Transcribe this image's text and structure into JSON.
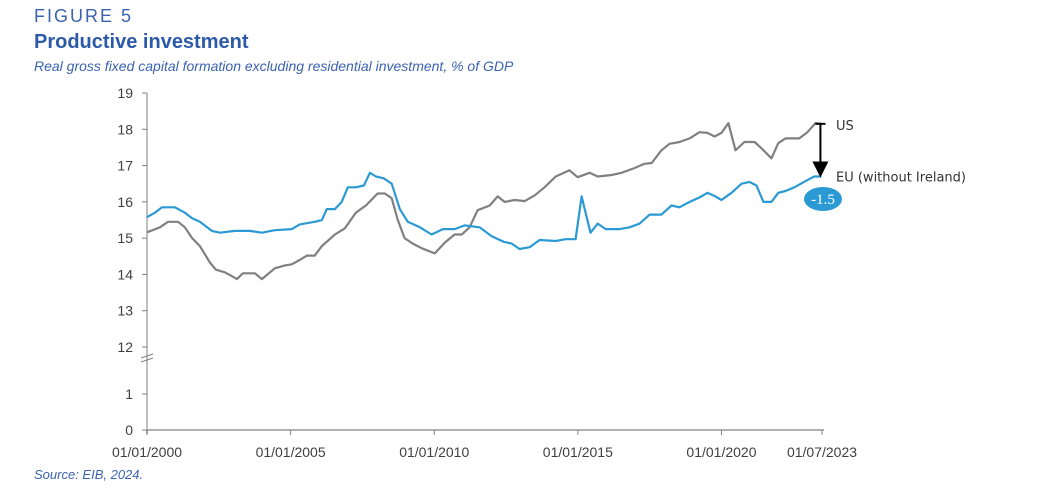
{
  "header": {
    "figure_label": "FIGURE 5",
    "title": "Productive investment",
    "subtitle": "Real gross fixed capital formation excluding residential investment, % of GDP"
  },
  "source": "Source: EIB, 2024.",
  "colors": {
    "eu": "#2b9ad4",
    "us": "#808080",
    "title": "#2d5aa8",
    "badge": "#2b9ad4"
  },
  "chart_data": {
    "type": "line",
    "title": "Productive investment",
    "xlabel": "",
    "ylabel": "% of GDP",
    "y_axis_break": [
      1,
      12
    ],
    "ylim_upper": [
      12,
      19
    ],
    "ylim_lower": [
      0,
      1
    ],
    "y_ticks": [
      0,
      1,
      12,
      13,
      14,
      15,
      16,
      17,
      18,
      19
    ],
    "xlim": [
      2000,
      2023.5
    ],
    "x_ticks": [
      {
        "value": 2000,
        "label": "01/01/2000"
      },
      {
        "value": 2005,
        "label": "01/01/2005"
      },
      {
        "value": 2010,
        "label": "01/01/2010"
      },
      {
        "value": 2015,
        "label": "01/01/2015"
      },
      {
        "value": 2020,
        "label": "01/01/2020"
      },
      {
        "value": 2023.5,
        "label": "01/07/2023"
      }
    ],
    "grid": false,
    "series": [
      {
        "name": "US",
        "color_key": "us",
        "x": [
          2000,
          2000.45,
          2000.73,
          2001.08,
          2001.32,
          2001.57,
          2001.84,
          2002.19,
          2002.4,
          2002.71,
          2002.96,
          2003.13,
          2003.34,
          2003.76,
          2004,
          2004.45,
          2004.8,
          2005.04,
          2005.32,
          2005.57,
          2005.84,
          2006.09,
          2006.54,
          2006.89,
          2007.27,
          2007.62,
          2008.03,
          2008.28,
          2008.52,
          2008.73,
          2008.97,
          2009.25,
          2009.57,
          2010.02,
          2010.37,
          2010.71,
          2010.96,
          2011.23,
          2011.51,
          2011.93,
          2012.21,
          2012.45,
          2012.8,
          2013.15,
          2013.5,
          2013.84,
          2014.23,
          2014.71,
          2014.99,
          2015.41,
          2015.69,
          2016.17,
          2016.52,
          2016.97,
          2017.32,
          2017.57,
          2017.91,
          2018.19,
          2018.54,
          2018.89,
          2019.23,
          2019.51,
          2019.76,
          2020,
          2020.24,
          2020.49,
          2020.8,
          2021.15,
          2021.39,
          2021.74,
          2021.98,
          2022.23,
          2022.71,
          2022.99,
          2023.27,
          2023.48
        ],
        "y": [
          15.16,
          15.3,
          15.45,
          15.45,
          15.3,
          15.0,
          14.78,
          14.33,
          14.13,
          14.06,
          13.95,
          13.87,
          14.03,
          14.03,
          13.87,
          14.17,
          14.25,
          14.28,
          14.4,
          14.52,
          14.52,
          14.78,
          15.1,
          15.27,
          15.7,
          15.9,
          16.23,
          16.23,
          16.1,
          15.5,
          15.0,
          14.85,
          14.72,
          14.58,
          14.88,
          15.1,
          15.1,
          15.3,
          15.77,
          15.9,
          16.15,
          16.0,
          16.05,
          16.02,
          16.18,
          16.4,
          16.7,
          16.87,
          16.68,
          16.8,
          16.7,
          16.74,
          16.8,
          16.93,
          17.05,
          17.07,
          17.42,
          17.6,
          17.65,
          17.75,
          17.92,
          17.9,
          17.8,
          17.9,
          18.17,
          17.42,
          17.65,
          17.65,
          17.48,
          17.2,
          17.62,
          17.75,
          17.75,
          17.92,
          18.17,
          18.15
        ]
      },
      {
        "name": "EU (without Ireland)",
        "color_key": "eu",
        "x": [
          2000,
          2000.28,
          2000.52,
          2000.97,
          2001.32,
          2001.57,
          2001.84,
          2002.26,
          2002.54,
          2003.06,
          2003.58,
          2004,
          2004.45,
          2005.04,
          2005.32,
          2005.84,
          2006.09,
          2006.26,
          2006.54,
          2006.78,
          2006.99,
          2007.27,
          2007.55,
          2007.76,
          2007.97,
          2008.24,
          2008.52,
          2008.8,
          2009.08,
          2009.5,
          2009.91,
          2010.3,
          2010.71,
          2011.06,
          2011.58,
          2012,
          2012.42,
          2012.7,
          2012.97,
          2013.32,
          2013.67,
          2014.23,
          2014.57,
          2014.92,
          2015.13,
          2015.44,
          2015.69,
          2015.97,
          2016.45,
          2016.8,
          2017.15,
          2017.5,
          2017.91,
          2018.26,
          2018.54,
          2018.89,
          2019.23,
          2019.51,
          2019.79,
          2020,
          2020.35,
          2020.7,
          2020.97,
          2021.22,
          2021.46,
          2021.74,
          2021.98,
          2022.23,
          2022.54,
          2022.99,
          2023.23,
          2023.48
        ],
        "y": [
          15.58,
          15.7,
          15.85,
          15.85,
          15.7,
          15.55,
          15.45,
          15.2,
          15.15,
          15.2,
          15.2,
          15.15,
          15.22,
          15.25,
          15.38,
          15.45,
          15.5,
          15.8,
          15.8,
          16.0,
          16.4,
          16.4,
          16.45,
          16.8,
          16.7,
          16.65,
          16.5,
          15.8,
          15.45,
          15.3,
          15.1,
          15.25,
          15.25,
          15.35,
          15.3,
          15.05,
          14.9,
          14.85,
          14.7,
          14.75,
          14.95,
          14.92,
          14.97,
          14.97,
          16.15,
          15.15,
          15.4,
          15.25,
          15.25,
          15.3,
          15.4,
          15.65,
          15.65,
          15.9,
          15.85,
          16.0,
          16.12,
          16.25,
          16.15,
          16.05,
          16.25,
          16.5,
          16.55,
          16.45,
          16.0,
          16.0,
          16.25,
          16.3,
          16.4,
          16.6,
          16.7,
          16.7
        ]
      }
    ],
    "annotations": {
      "us_label": "US",
      "eu_label": "EU (without Ireland)",
      "gap_value": "-1.5",
      "gap_from": 18.15,
      "gap_to": 16.7,
      "gap_at": 2023.48
    }
  }
}
